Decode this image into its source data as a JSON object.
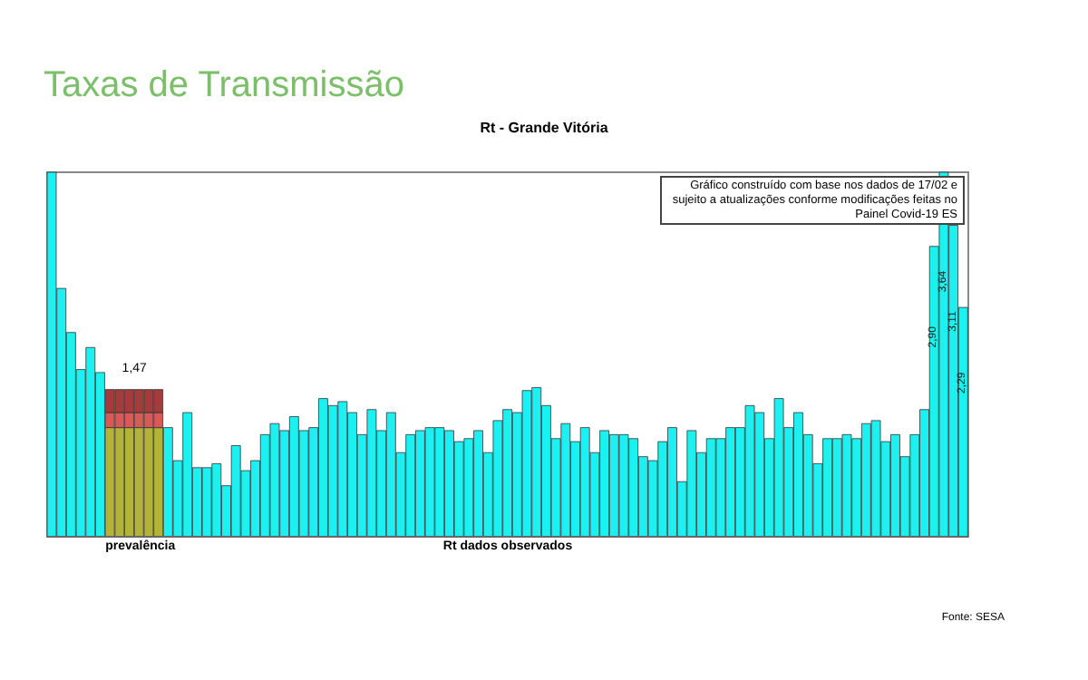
{
  "chart_data": {
    "type": "bar",
    "title": "Taxas de Transmissão",
    "subtitle": "Rt - Grande Vitória",
    "stacked": true,
    "categories": [
      null,
      null,
      null,
      null,
      null,
      null,
      null,
      null,
      null,
      null,
      null,
      null,
      null,
      null,
      null,
      null,
      null,
      null,
      null,
      null,
      null,
      null,
      null,
      null,
      null,
      null,
      null,
      null,
      null,
      null,
      null,
      null,
      null,
      null,
      null,
      null,
      null,
      null,
      null,
      null,
      null,
      null,
      null,
      null,
      null,
      null,
      null,
      null,
      null,
      null,
      null,
      null,
      null,
      null,
      null,
      null,
      null,
      null,
      null,
      null,
      null,
      null,
      null,
      null,
      null,
      null,
      null,
      null,
      null,
      null,
      null,
      null,
      null,
      null,
      null,
      null,
      null,
      null,
      null,
      null,
      null,
      null,
      null,
      null,
      null,
      null,
      null,
      null,
      null,
      null,
      null,
      null,
      null,
      null,
      null
    ],
    "series": [
      {
        "color": "#1cf0f0",
        "colors": [
          "#1cf0f0",
          "#1cf0f0",
          "#1cf0f0",
          "#1cf0f0",
          "#1cf0f0",
          "#1cf0f0",
          "#b3b33a",
          "#b3b33a",
          "#b3b33a",
          "#b3b33a",
          "#b3b33a",
          "#b3b33a",
          "#1cf0f0",
          "#1cf0f0",
          "#1cf0f0",
          "#1cf0f0",
          "#1cf0f0",
          "#1cf0f0",
          "#1cf0f0",
          "#1cf0f0",
          "#1cf0f0",
          "#1cf0f0",
          "#1cf0f0",
          "#1cf0f0",
          "#1cf0f0",
          "#1cf0f0",
          "#1cf0f0",
          "#1cf0f0",
          "#1cf0f0",
          "#1cf0f0",
          "#1cf0f0",
          "#1cf0f0",
          "#1cf0f0",
          "#1cf0f0",
          "#1cf0f0",
          "#1cf0f0",
          "#1cf0f0",
          "#1cf0f0",
          "#1cf0f0",
          "#1cf0f0",
          "#1cf0f0",
          "#1cf0f0",
          "#1cf0f0",
          "#1cf0f0",
          "#1cf0f0",
          "#1cf0f0",
          "#1cf0f0",
          "#1cf0f0",
          "#1cf0f0",
          "#1cf0f0",
          "#1cf0f0",
          "#1cf0f0",
          "#1cf0f0",
          "#1cf0f0",
          "#1cf0f0",
          "#1cf0f0",
          "#1cf0f0",
          "#1cf0f0",
          "#1cf0f0",
          "#1cf0f0",
          "#1cf0f0",
          "#1cf0f0",
          "#1cf0f0",
          "#1cf0f0",
          "#1cf0f0",
          "#1cf0f0",
          "#1cf0f0",
          "#1cf0f0",
          "#1cf0f0",
          "#1cf0f0",
          "#1cf0f0",
          "#1cf0f0",
          "#1cf0f0",
          "#1cf0f0",
          "#1cf0f0",
          "#1cf0f0",
          "#1cf0f0",
          "#1cf0f0",
          "#1cf0f0",
          "#1cf0f0",
          "#1cf0f0",
          "#1cf0f0",
          "#1cf0f0",
          "#1cf0f0",
          "#1cf0f0",
          "#1cf0f0",
          "#1cf0f0",
          "#1cf0f0",
          "#1cf0f0",
          "#1cf0f0",
          "#1cf0f0",
          "#1cf0f0",
          "#1cf0f0",
          "#1cf0f0",
          "#1cf0f0"
        ],
        "values": [
          3.64,
          2.48,
          2.04,
          1.67,
          1.89,
          1.64,
          1.09,
          1.09,
          1.09,
          1.09,
          1.09,
          1.09,
          1.09,
          0.76,
          1.24,
          0.69,
          0.69,
          0.73,
          0.51,
          0.91,
          0.66,
          0.76,
          1.02,
          1.13,
          1.06,
          1.2,
          1.06,
          1.09,
          1.38,
          1.31,
          1.35,
          1.24,
          1.02,
          1.27,
          1.06,
          1.24,
          0.84,
          1.02,
          1.06,
          1.09,
          1.09,
          1.06,
          0.95,
          0.98,
          1.06,
          0.84,
          1.16,
          1.27,
          1.24,
          1.46,
          1.49,
          1.31,
          0.98,
          1.13,
          0.95,
          1.09,
          0.84,
          1.06,
          1.02,
          1.02,
          0.98,
          0.8,
          0.76,
          0.95,
          1.09,
          0.55,
          1.06,
          0.84,
          0.98,
          0.98,
          1.09,
          1.09,
          1.31,
          1.24,
          0.98,
          1.38,
          1.09,
          1.24,
          1.02,
          0.73,
          0.98,
          0.98,
          1.02,
          0.98,
          1.13,
          1.16,
          0.95,
          1.02,
          0.8,
          1.02,
          1.27,
          2.9,
          3.64,
          3.11,
          2.29
        ],
        "value_labels": [
          null,
          null,
          null,
          null,
          null,
          null,
          null,
          null,
          null,
          null,
          null,
          null,
          null,
          null,
          null,
          null,
          null,
          null,
          null,
          null,
          null,
          null,
          null,
          null,
          null,
          null,
          null,
          null,
          null,
          null,
          null,
          null,
          null,
          null,
          null,
          null,
          null,
          null,
          null,
          null,
          null,
          null,
          null,
          null,
          null,
          null,
          null,
          null,
          null,
          null,
          null,
          null,
          null,
          null,
          null,
          null,
          null,
          null,
          null,
          null,
          null,
          null,
          null,
          null,
          null,
          null,
          null,
          null,
          null,
          null,
          null,
          null,
          null,
          null,
          null,
          null,
          null,
          null,
          null,
          null,
          null,
          null,
          null,
          null,
          null,
          null,
          null,
          null,
          null,
          null,
          null,
          "2,90",
          "3,64",
          "3,11",
          "2,29"
        ]
      },
      {
        "color": "#d65a55",
        "values": [
          null,
          null,
          null,
          null,
          null,
          null,
          0.15,
          0.15,
          0.15,
          0.15,
          0.15,
          0.15,
          null,
          null,
          null,
          null,
          null,
          null,
          null,
          null,
          null,
          null,
          null,
          null,
          null,
          null,
          null,
          null,
          null,
          null,
          null,
          null,
          null,
          null,
          null,
          null,
          null,
          null,
          null,
          null,
          null,
          null,
          null,
          null,
          null,
          null,
          null,
          null,
          null,
          null,
          null,
          null,
          null,
          null,
          null,
          null,
          null,
          null,
          null,
          null,
          null,
          null,
          null,
          null,
          null,
          null,
          null,
          null,
          null,
          null,
          null,
          null,
          null,
          null,
          null,
          null,
          null,
          null,
          null,
          null,
          null,
          null,
          null,
          null,
          null,
          null,
          null,
          null,
          null,
          null,
          null,
          null,
          null,
          null,
          null
        ]
      },
      {
        "color": "#a53c3c",
        "values": [
          null,
          null,
          null,
          null,
          null,
          null,
          0.23,
          0.23,
          0.23,
          0.23,
          0.23,
          0.23,
          null,
          null,
          null,
          null,
          null,
          null,
          null,
          null,
          null,
          null,
          null,
          null,
          null,
          null,
          null,
          null,
          null,
          null,
          null,
          null,
          null,
          null,
          null,
          null,
          null,
          null,
          null,
          null,
          null,
          null,
          null,
          null,
          null,
          null,
          null,
          null,
          null,
          null,
          null,
          null,
          null,
          null,
          null,
          null,
          null,
          null,
          null,
          null,
          null,
          null,
          null,
          null,
          null,
          null,
          null,
          null,
          null,
          null,
          null,
          null,
          null,
          null,
          null,
          null,
          null,
          null,
          null,
          null,
          null,
          null,
          null,
          null,
          null,
          null,
          null,
          null,
          null,
          null,
          null,
          null,
          null,
          null,
          null
        ]
      }
    ],
    "annotations": [
      "Gráfico construído com base nos dados de 17/02  e sujeito a atualizações conforme modificações feitas no Painel Covid-19 ES",
      "1,47",
      "prevalência",
      "Rt dados observados",
      "Fonte: SESA"
    ]
  }
}
